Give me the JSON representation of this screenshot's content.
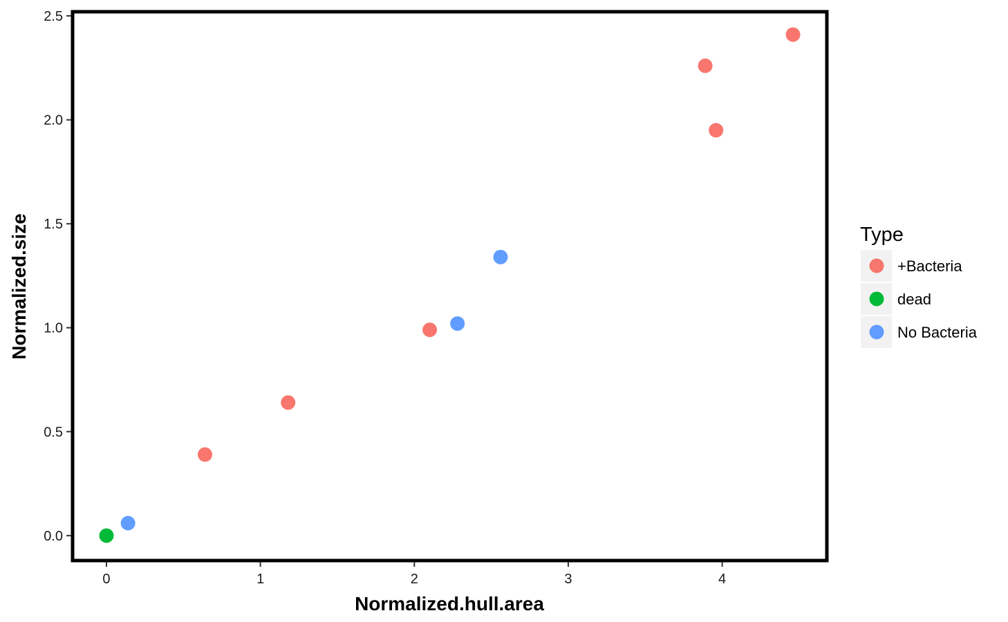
{
  "chart_data": {
    "type": "scatter",
    "xlabel": "Normalized.hull.area",
    "ylabel": "Normalized.size",
    "xlim": [
      -0.22,
      4.68
    ],
    "ylim": [
      -0.12,
      2.52
    ],
    "x_ticks": [
      0,
      1,
      2,
      3,
      4
    ],
    "x_tick_labels": [
      "0",
      "1",
      "2",
      "3",
      "4"
    ],
    "y_ticks": [
      0.0,
      0.5,
      1.0,
      1.5,
      2.0,
      2.5
    ],
    "y_tick_labels": [
      "0.0",
      "0.5",
      "1.0",
      "1.5",
      "2.0",
      "2.5"
    ],
    "grid": false,
    "legend": {
      "title": "Type",
      "position": "right"
    },
    "series": [
      {
        "name": "+Bacteria",
        "color": "#F8766D",
        "points": [
          {
            "x": 0.64,
            "y": 0.39
          },
          {
            "x": 1.18,
            "y": 0.64
          },
          {
            "x": 2.1,
            "y": 0.99
          },
          {
            "x": 3.89,
            "y": 2.26
          },
          {
            "x": 3.96,
            "y": 1.95
          },
          {
            "x": 4.46,
            "y": 2.41
          }
        ]
      },
      {
        "name": "dead",
        "color": "#00BA38",
        "points": [
          {
            "x": 0.0,
            "y": 0.0
          }
        ]
      },
      {
        "name": "No Bacteria",
        "color": "#619CFF",
        "points": [
          {
            "x": 0.14,
            "y": 0.06
          },
          {
            "x": 2.28,
            "y": 1.02
          },
          {
            "x": 2.56,
            "y": 1.34
          }
        ]
      }
    ]
  }
}
